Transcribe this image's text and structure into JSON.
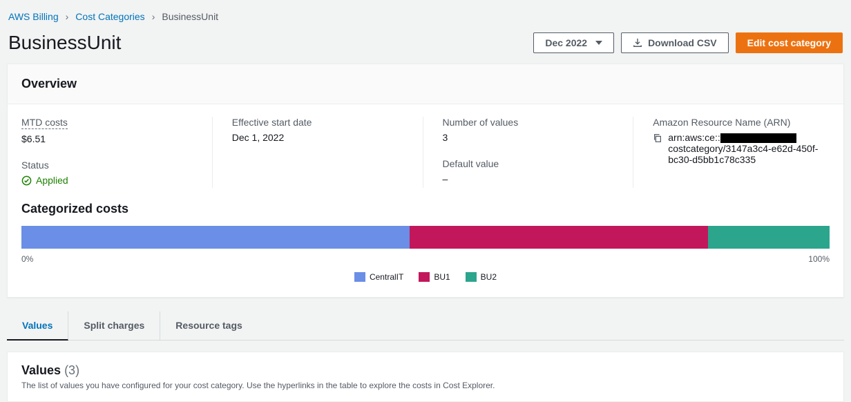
{
  "breadcrumb": {
    "root": "AWS Billing",
    "section": "Cost Categories",
    "current": "BusinessUnit"
  },
  "header": {
    "title": "BusinessUnit",
    "month_selector": "Dec 2022",
    "download_label": "Download CSV",
    "edit_label": "Edit cost category"
  },
  "overview": {
    "title": "Overview",
    "mtd_label": "MTD costs",
    "mtd_value": "$6.51",
    "status_label": "Status",
    "status_value": "Applied",
    "status_color": "#1d8102",
    "effective_label": "Effective start date",
    "effective_value": "Dec 1, 2022",
    "numvals_label": "Number of values",
    "numvals_value": "3",
    "default_label": "Default value",
    "default_value": "–",
    "arn_label": "Amazon Resource Name (ARN)",
    "arn_prefix": "arn:aws:ce::",
    "arn_suffix": "costcategory/3147a3c4-e62d-450f-bc30-d5bb1c78c335"
  },
  "categorized": {
    "title": "Categorized costs",
    "scale_min": "0%",
    "scale_max": "100%",
    "segments": [
      {
        "label": "CentralIT",
        "color": "#6b8ee6",
        "width_pct": 48
      },
      {
        "label": "BU1",
        "color": "#c2185b",
        "width_pct": 37
      },
      {
        "label": "BU2",
        "color": "#2ca58d",
        "width_pct": 15
      }
    ]
  },
  "tabs": {
    "values": "Values",
    "split": "Split charges",
    "resource": "Resource tags"
  },
  "values_section": {
    "title": "Values",
    "count": "(3)",
    "description": "The list of values you have configured for your cost category. Use the hyperlinks in the table to explore the costs in Cost Explorer."
  }
}
